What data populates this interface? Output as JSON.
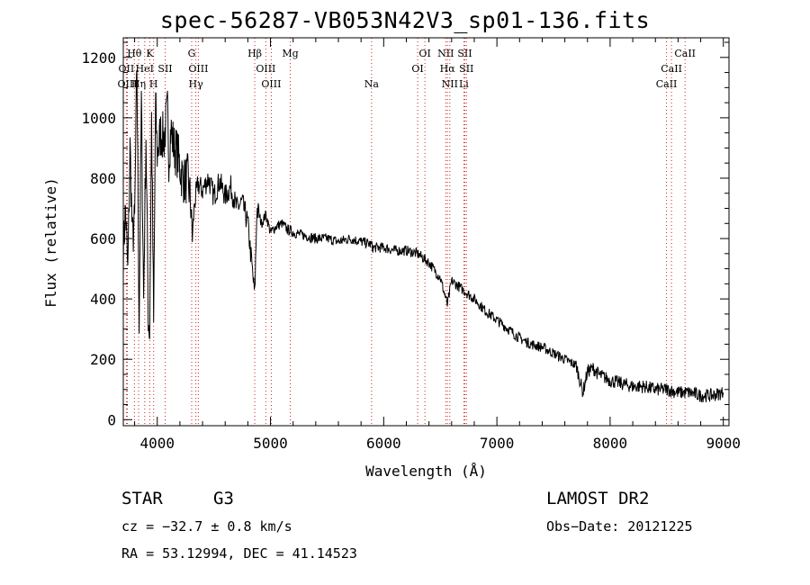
{
  "chart_data": {
    "type": "line",
    "title": "spec-56287-VB053N42V3_sp01-136.fits",
    "xlabel": "Wavelength (Å)",
    "ylabel": "Flux (relative)",
    "xlim": [
      3700,
      9050
    ],
    "ylim": [
      -20,
      1265
    ],
    "xticks": [
      4000,
      5000,
      6000,
      7000,
      8000,
      9000
    ],
    "xtick_labels": [
      "4000",
      "5000",
      "6000",
      "7000",
      "8000",
      "9000"
    ],
    "yticks": [
      0,
      200,
      400,
      600,
      800,
      1000,
      1200
    ],
    "ytick_labels": [
      "0",
      "200",
      "400",
      "600",
      "800",
      "1000",
      "1200"
    ],
    "line_color": "#000000",
    "marker_color": "#cc2222",
    "spectrum": {
      "x": [
        3700,
        3720,
        3740,
        3760,
        3780,
        3800,
        3820,
        3840,
        3860,
        3880,
        3900,
        3920,
        3933,
        3950,
        3968,
        3985,
        4000,
        4030,
        4060,
        4090,
        4102,
        4120,
        4150,
        4180,
        4210,
        4240,
        4270,
        4300,
        4310,
        4330,
        4360,
        4400,
        4450,
        4500,
        4550,
        4600,
        4650,
        4700,
        4750,
        4800,
        4861,
        4880,
        4920,
        4960,
        5000,
        5050,
        5100,
        5150,
        5200,
        5300,
        5400,
        5500,
        5600,
        5700,
        5800,
        5893,
        5900,
        6000,
        6100,
        6200,
        6300,
        6400,
        6500,
        6563,
        6600,
        6700,
        6800,
        6900,
        7000,
        7100,
        7200,
        7300,
        7400,
        7500,
        7600,
        7700,
        7760,
        7800,
        7850,
        7900,
        8000,
        8100,
        8200,
        8300,
        8400,
        8500,
        8600,
        8700,
        8800,
        8900,
        9000
      ],
      "y": [
        560,
        700,
        480,
        900,
        600,
        650,
        1180,
        320,
        1050,
        400,
        950,
        350,
        290,
        1000,
        300,
        1050,
        880,
        950,
        930,
        1020,
        870,
        960,
        900,
        880,
        820,
        790,
        800,
        700,
        600,
        720,
        780,
        760,
        800,
        740,
        790,
        740,
        770,
        700,
        720,
        650,
        410,
        700,
        650,
        680,
        620,
        640,
        650,
        630,
        620,
        610,
        600,
        600,
        590,
        600,
        590,
        580,
        570,
        570,
        560,
        560,
        550,
        520,
        470,
        380,
        460,
        430,
        400,
        360,
        330,
        300,
        270,
        250,
        240,
        220,
        200,
        180,
        90,
        160,
        170,
        150,
        130,
        120,
        110,
        110,
        100,
        100,
        90,
        90,
        80,
        80,
        90
      ]
    },
    "lines": [
      {
        "label": "Hθ",
        "x": 3798,
        "row": 0
      },
      {
        "label": "OII",
        "x": 3727,
        "row": 1
      },
      {
        "label": "OIII",
        "x": 3736,
        "row": 2
      },
      {
        "label": "Hη",
        "x": 3835,
        "row": 2
      },
      {
        "label": "HeI",
        "x": 3889,
        "row": 1
      },
      {
        "label": "K",
        "x": 3934,
        "row": 0
      },
      {
        "label": "SII",
        "x": 4070,
        "row": 1
      },
      {
        "label": "H",
        "x": 3968,
        "row": 2
      },
      {
        "label": "G",
        "x": 4304,
        "row": 0
      },
      {
        "label": "OIII",
        "x": 4363,
        "row": 1
      },
      {
        "label": "Hγ",
        "x": 4341,
        "row": 2
      },
      {
        "label": "Hβ",
        "x": 4861,
        "row": 0
      },
      {
        "label": "OIII",
        "x": 4959,
        "row": 1
      },
      {
        "label": "OIII",
        "x": 5007,
        "row": 2
      },
      {
        "label": "Mg",
        "x": 5175,
        "row": 0
      },
      {
        "label": "Na",
        "x": 5893,
        "row": 2
      },
      {
        "label": "OI",
        "x": 6364,
        "row": 0
      },
      {
        "label": "OI",
        "x": 6300,
        "row": 1
      },
      {
        "label": "NII",
        "x": 6548,
        "row": 0
      },
      {
        "label": "Hα",
        "x": 6563,
        "row": 1
      },
      {
        "label": "NII",
        "x": 6584,
        "row": 2
      },
      {
        "label": "SII",
        "x": 6717,
        "row": 0
      },
      {
        "label": "SII",
        "x": 6731,
        "row": 1
      },
      {
        "label": "Li",
        "x": 6708,
        "row": 2
      },
      {
        "label": "CaII",
        "x": 8662,
        "row": 0
      },
      {
        "label": "CaII",
        "x": 8542,
        "row": 1
      },
      {
        "label": "CaII",
        "x": 8498,
        "row": 2
      }
    ]
  },
  "info": {
    "object_type": "STAR",
    "subclass": "G3",
    "survey": "LAMOST  DR2",
    "cz": "cz = −32.7 ± 0.8 km/s",
    "obs_date": "Obs−Date: 20121225",
    "coords": "RA =  53.12994, DEC =  41.14523"
  }
}
